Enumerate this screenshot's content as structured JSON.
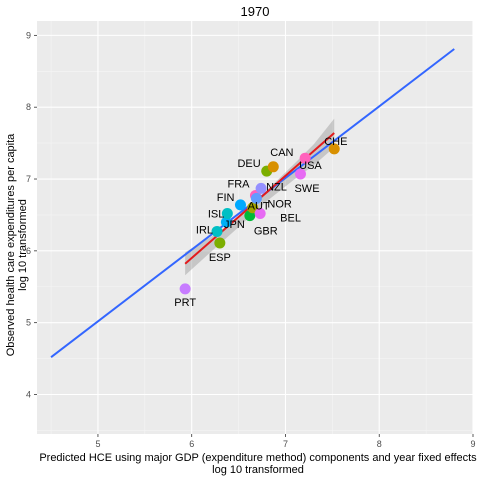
{
  "chart_data": {
    "type": "scatter",
    "title": "1970",
    "xlabel": "Predicted HCE using major GDP (expenditure method) components and year fixed effects",
    "xlabel2": "log 10 transformed",
    "ylabel": "Observed health care expenditures per capita",
    "ylabel2": "log 10 transformed",
    "xlim": [
      4.35,
      9.0
    ],
    "ylim": [
      3.45,
      9.2
    ],
    "xticks": [
      "5",
      "6",
      "7",
      "8",
      "9"
    ],
    "yticks": [
      "4",
      "5",
      "6",
      "7",
      "8",
      "9"
    ],
    "grid": true,
    "points": [
      {
        "label": "PRT",
        "x": 5.93,
        "y": 5.47,
        "color": "#c77cff"
      },
      {
        "label": "ESP",
        "x": 6.3,
        "y": 6.11,
        "color": "#7cae00"
      },
      {
        "label": "IRL",
        "x": 6.27,
        "y": 6.27,
        "color": "#00bfc4"
      },
      {
        "label": "JPN",
        "x": 6.37,
        "y": 6.4,
        "color": "#00b0f6"
      },
      {
        "label": "ISL",
        "x": 6.38,
        "y": 6.52,
        "color": "#00bfc4"
      },
      {
        "label": "GBR",
        "x": 6.62,
        "y": 6.49,
        "color": "#00ba38"
      },
      {
        "label": "FIN",
        "x": 6.52,
        "y": 6.64,
        "color": "#00a9ff"
      },
      {
        "label": "AUT",
        "x": 6.65,
        "y": 6.6,
        "color": "#a3a500"
      },
      {
        "label": "BEL",
        "x": 6.73,
        "y": 6.52,
        "color": "#e76bf3"
      },
      {
        "label": "FRA",
        "x": 6.68,
        "y": 6.77,
        "color": "#ff62bc"
      },
      {
        "label": "NOR",
        "x": 6.69,
        "y": 6.73,
        "color": "#619cff"
      },
      {
        "label": "NZL",
        "x": 6.74,
        "y": 6.87,
        "color": "#9590ff"
      },
      {
        "label": "DEU",
        "x": 6.8,
        "y": 7.11,
        "color": "#7cae00"
      },
      {
        "label": "CAN",
        "x": 6.87,
        "y": 7.17,
        "color": "#d89000"
      },
      {
        "label": "SWE",
        "x": 7.16,
        "y": 7.07,
        "color": "#e76bf3"
      },
      {
        "label": "USA",
        "x": 7.21,
        "y": 7.29,
        "color": "#ff62bc"
      },
      {
        "label": "CHE",
        "x": 7.52,
        "y": 7.42,
        "color": "#d89000"
      }
    ],
    "fit_lines": [
      {
        "color": "#3366ff",
        "x": [
          4.5,
          8.8
        ],
        "y": [
          4.52,
          8.81
        ]
      },
      {
        "color": "#e41a1c",
        "x": [
          5.93,
          7.52
        ],
        "y": [
          5.82,
          7.64
        ]
      }
    ],
    "band": {
      "x": [
        5.93,
        6.2,
        6.5,
        6.8,
        7.1,
        7.3,
        7.52
      ],
      "upper": [
        5.98,
        6.19,
        6.45,
        6.84,
        7.22,
        7.48,
        7.84
      ],
      "lower": [
        5.66,
        5.98,
        6.33,
        6.69,
        7.0,
        7.19,
        7.44
      ]
    }
  }
}
